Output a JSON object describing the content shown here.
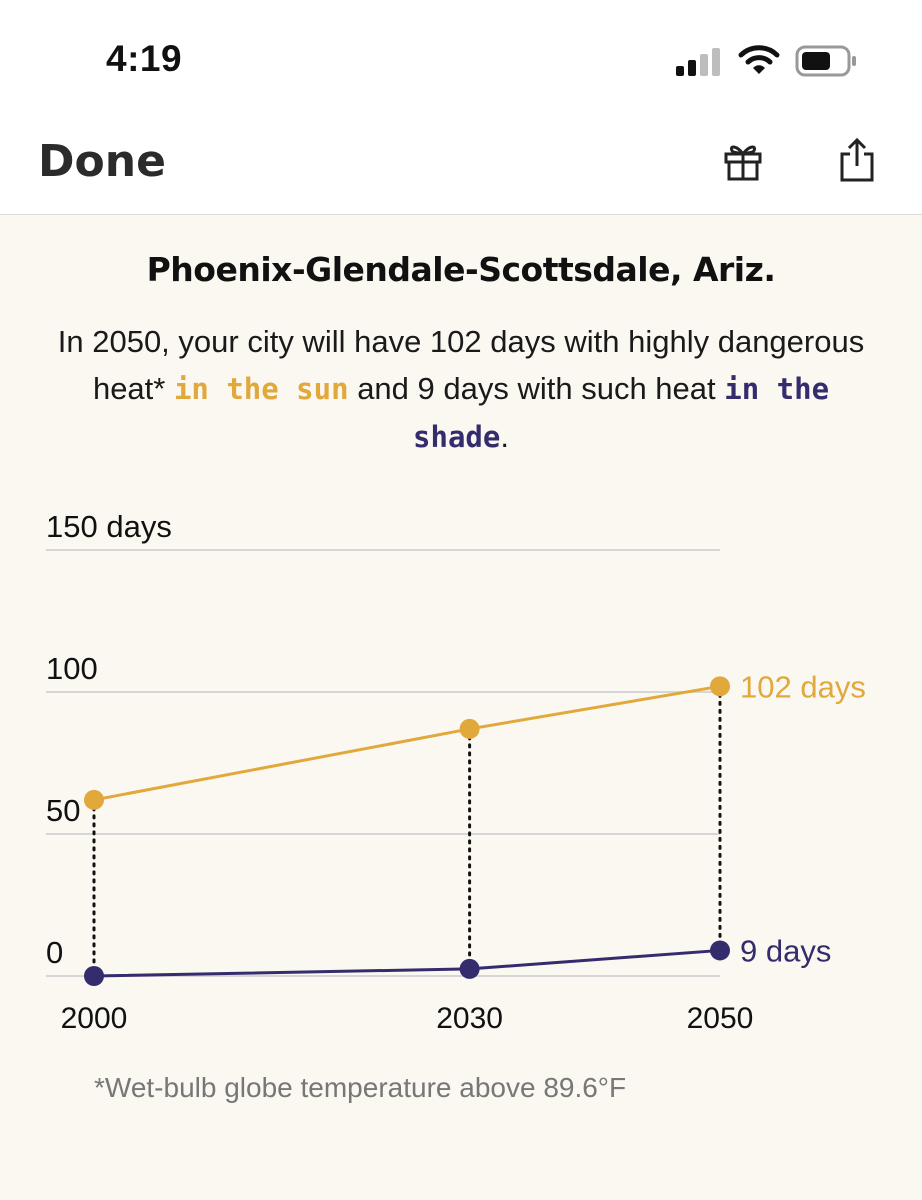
{
  "status": {
    "time": "4:19"
  },
  "nav": {
    "done_label": "Done"
  },
  "header": {
    "title": "Phoenix-Glendale-Scottsdale, Ariz.",
    "desc_1": "In 2050, your city will have 102 days with highly dangerous heat* ",
    "sun_label": "in the sun",
    "desc_2": " and 9 days with such heat ",
    "shade_label": "in the shade",
    "desc_3": "."
  },
  "colors": {
    "sun": "#e1a83c",
    "shade": "#352c6d",
    "grid": "#d6d6d6"
  },
  "chart_data": {
    "type": "line",
    "x": [
      2000,
      2030,
      2050
    ],
    "x_tick_labels": [
      "2000",
      "2030",
      "2050"
    ],
    "y_tick_labels": [
      "150 days",
      "100",
      "50",
      "0"
    ],
    "y_ticks": [
      150,
      100,
      50,
      0
    ],
    "ylim": [
      0,
      150
    ],
    "grid": true,
    "series": [
      {
        "key": "sun",
        "values": [
          62,
          87,
          102
        ],
        "end_label": "102 days",
        "color": "#e1a83c"
      },
      {
        "key": "shade",
        "values": [
          0,
          2.5,
          9
        ],
        "end_label": "9 days",
        "color": "#352c6d"
      }
    ]
  },
  "footnote": "*Wet-bulb globe temperature above 89.6°F"
}
